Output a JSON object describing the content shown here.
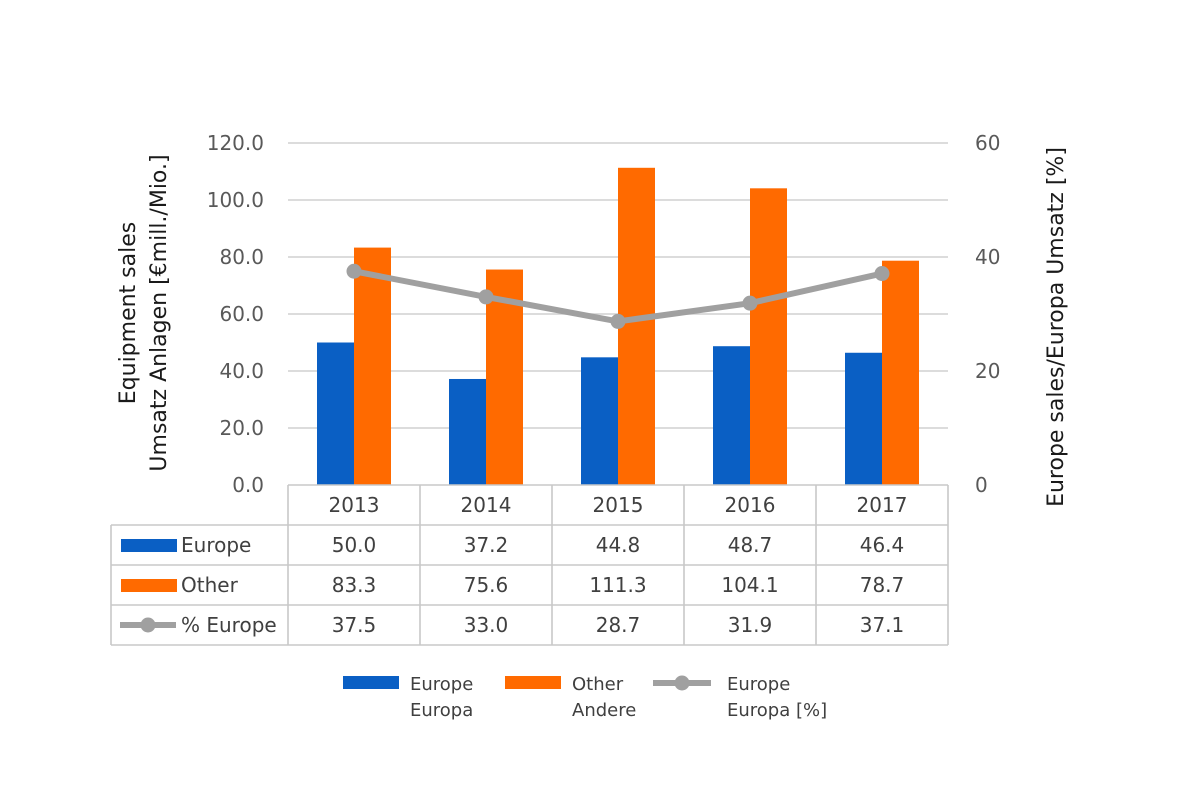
{
  "chart_data": {
    "type": "bar",
    "categories": [
      "2013",
      "2014",
      "2015",
      "2016",
      "2017"
    ],
    "series": [
      {
        "name": "Europe",
        "type": "bar",
        "axis": "left",
        "color": "#0a5fc4",
        "values": [
          50.0,
          37.2,
          44.8,
          48.7,
          46.4
        ],
        "labels": [
          "50.0",
          "37.2",
          "44.8",
          "48.7",
          "46.4"
        ]
      },
      {
        "name": "Other",
        "type": "bar",
        "axis": "left",
        "color": "#ff6a00",
        "values": [
          83.3,
          75.6,
          111.3,
          104.1,
          78.7
        ],
        "labels": [
          "83.3",
          "75.6",
          "111.3",
          "104.1",
          "78.7"
        ]
      },
      {
        "name": "% Europe",
        "type": "line",
        "axis": "right",
        "color": "#a0a0a0",
        "values": [
          37.5,
          33.0,
          28.7,
          31.9,
          37.1
        ],
        "labels": [
          "37.5",
          "33.0",
          "28.7",
          "31.9",
          "37.1"
        ]
      }
    ],
    "ylabel_line1": "Equipment sales",
    "ylabel_line2": "Umsatz Anlagen [€mill./Mio.]",
    "y2label": "Europe sales/Europa Umsatz [%]",
    "ylim": [
      0,
      120
    ],
    "y2lim": [
      0,
      60
    ],
    "yticks": [
      "0.0",
      "20.0",
      "40.0",
      "60.0",
      "80.0",
      "100.0",
      "120.0"
    ],
    "y2ticks": [
      "0",
      "20",
      "40",
      "60"
    ],
    "grid": true,
    "data_table": true,
    "legend": {
      "placement": "bottom",
      "items": [
        {
          "line1": "Europe",
          "line2": "Europa"
        },
        {
          "line1": "Other",
          "line2": "Andere"
        },
        {
          "line1": "Europe",
          "line2": "Europa [%]"
        }
      ]
    }
  }
}
